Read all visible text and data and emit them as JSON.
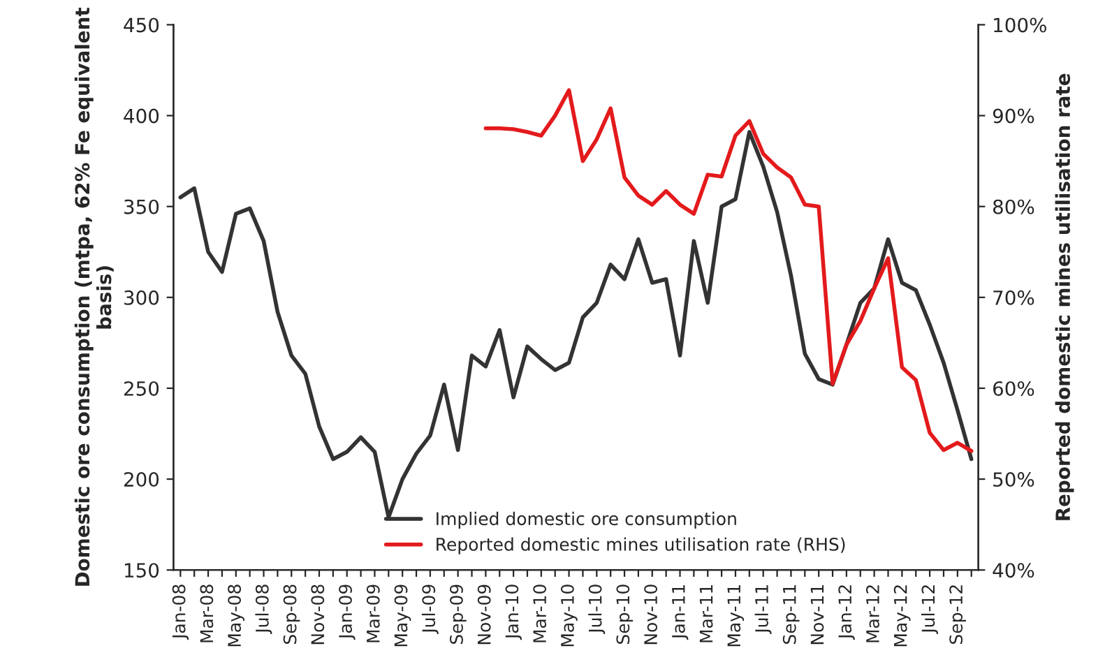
{
  "chart_data": {
    "type": "line",
    "ylabel": "Domestic ore consumption (mtpa, 62% Fe equivalent basis)",
    "y2label": "Reported domestic mines utilisation rate",
    "categories": [
      "Jan-08",
      null,
      "Mar-08",
      null,
      "May-08",
      null,
      "Jul-08",
      null,
      "Sep-08",
      null,
      "Nov-08",
      null,
      "Jan-09",
      null,
      "Mar-09",
      null,
      "May-09",
      null,
      "Jul-09",
      null,
      "Sep-09",
      null,
      "Nov-09",
      null,
      "Jan-10",
      null,
      "Mar-10",
      null,
      "May-10",
      null,
      "Jul-10",
      null,
      "Sep-10",
      null,
      "Nov-10",
      null,
      "Jan-11",
      null,
      "Mar-11",
      null,
      "May-11",
      null,
      "Jul-11",
      null,
      "Sep-11",
      null,
      "Nov-11",
      null,
      "Jan-12",
      null,
      "Mar-12",
      null,
      "May-12",
      null,
      "Jul-12",
      null,
      "Sep-12",
      null
    ],
    "series": [
      {
        "name": "Implied domestic ore consumption",
        "color": "#333333",
        "values": [
          355,
          360,
          325,
          314,
          346,
          349,
          331,
          292,
          268,
          258,
          229,
          211,
          215,
          223,
          215,
          179,
          200,
          214,
          224,
          252,
          216,
          268,
          262,
          282,
          245,
          273,
          266,
          260,
          264,
          289,
          297,
          318,
          310,
          332,
          308,
          310,
          268,
          331,
          297,
          350,
          354,
          391,
          372,
          347,
          312,
          269,
          255,
          252,
          274,
          297,
          305,
          332,
          308,
          304,
          285,
          264,
          238,
          211
        ]
      },
      {
        "name": "Reported domestic mines utilisation rate (RHS)",
        "color": "#e31a1c",
        "axis": "y2",
        "values": [
          null,
          null,
          null,
          null,
          null,
          null,
          null,
          null,
          null,
          null,
          null,
          null,
          null,
          null,
          null,
          null,
          null,
          null,
          null,
          null,
          null,
          null,
          88.6,
          88.6,
          88.5,
          88.2,
          87.8,
          90,
          92.8,
          85,
          87.4,
          90.8,
          83.2,
          81.2,
          80.2,
          81.7,
          80.2,
          79.2,
          83.5,
          83.3,
          87.8,
          89.4,
          85.8,
          84.3,
          83.2,
          80.2,
          80,
          60.5,
          64.8,
          67.4,
          71,
          74.3,
          62.3,
          60.9,
          55.1,
          53.2,
          54,
          53.1
        ]
      }
    ],
    "ylim": [
      150,
      450
    ],
    "yticks": [
      150,
      200,
      250,
      300,
      350,
      400,
      450
    ],
    "y2lim": [
      40,
      100
    ],
    "y2ticks": [
      {
        "value": 40,
        "label": "40%"
      },
      {
        "value": 50,
        "label": "50%"
      },
      {
        "value": 60,
        "label": "60%"
      },
      {
        "value": 70,
        "label": "70%"
      },
      {
        "value": 80,
        "label": "80%"
      },
      {
        "value": 90,
        "label": "90%"
      },
      {
        "value": 100,
        "label": "100%"
      }
    ],
    "legend": "bottom",
    "grid": false,
    "marker": "none",
    "line_style": "solid"
  }
}
